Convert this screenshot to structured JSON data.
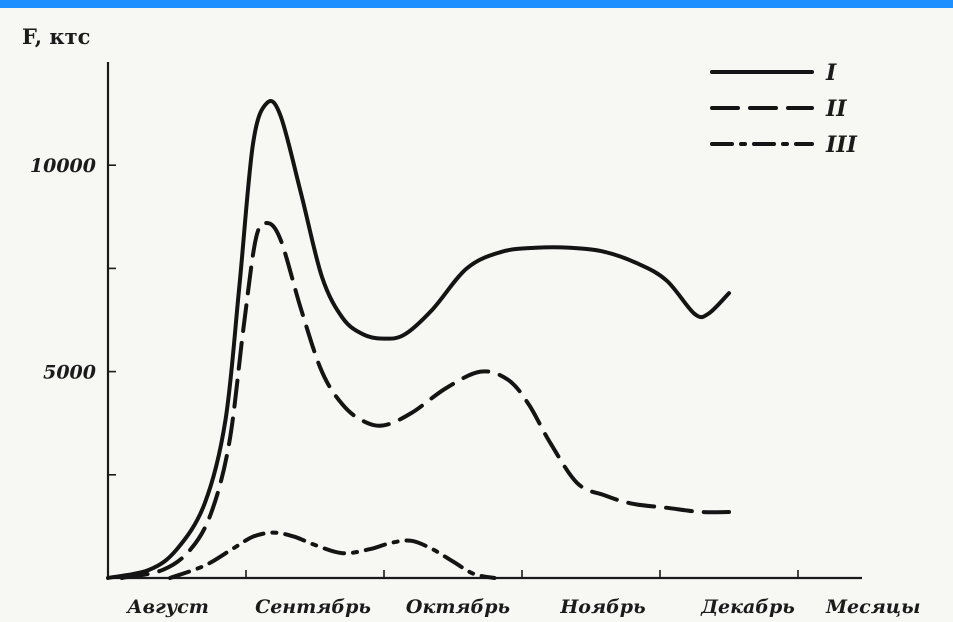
{
  "frame": {
    "top_bar_color": "#1e90ff"
  },
  "chart_data": {
    "type": "line",
    "ylabel": "F, ктс",
    "xlabel": "Месяцы",
    "categories": [
      "Август",
      "Сентябрь",
      "Октябрь",
      "Ноябрь",
      "Декабрь"
    ],
    "ylim": [
      0,
      12500
    ],
    "yticks": [
      0,
      2500,
      5000,
      7500,
      10000
    ],
    "ytick_labels": [
      "10000",
      "5000"
    ],
    "legend": {
      "position": "top-right"
    },
    "series": [
      {
        "name": "I",
        "style": "solid",
        "x": [
          0.0,
          0.3,
          0.5,
          0.7,
          0.85,
          0.95,
          1.05,
          1.15,
          1.25,
          1.4,
          1.55,
          1.7,
          1.85,
          2.0,
          2.15,
          2.35,
          2.6,
          2.85,
          3.1,
          3.35,
          3.6,
          3.85,
          4.05,
          4.25,
          4.35,
          4.5
        ],
        "y": [
          0,
          200,
          700,
          1800,
          3800,
          7000,
          10500,
          11500,
          11200,
          9300,
          7300,
          6300,
          5900,
          5800,
          5900,
          6500,
          7500,
          7900,
          8000,
          8000,
          7900,
          7600,
          7200,
          6400,
          6400,
          6900
        ]
      },
      {
        "name": "II",
        "style": "dashed",
        "x": [
          0.1,
          0.4,
          0.6,
          0.75,
          0.88,
          0.98,
          1.07,
          1.15,
          1.25,
          1.4,
          1.55,
          1.7,
          1.85,
          2.0,
          2.2,
          2.45,
          2.7,
          2.9,
          3.05,
          3.2,
          3.4,
          3.6,
          3.8,
          4.05,
          4.3,
          4.5
        ],
        "y": [
          0,
          200,
          700,
          1600,
          3300,
          6000,
          8200,
          8600,
          8200,
          6500,
          5000,
          4200,
          3800,
          3700,
          4000,
          4600,
          5000,
          4800,
          4200,
          3300,
          2300,
          2000,
          1800,
          1700,
          1600,
          1600
        ]
      },
      {
        "name": "III",
        "style": "dash-dot",
        "x": [
          0.45,
          0.7,
          0.9,
          1.05,
          1.2,
          1.35,
          1.5,
          1.7,
          1.9,
          2.05,
          2.2,
          2.35,
          2.5,
          2.65,
          2.8
        ],
        "y": [
          0,
          300,
          700,
          1000,
          1100,
          1000,
          800,
          600,
          700,
          850,
          900,
          700,
          400,
          100,
          0
        ]
      }
    ]
  }
}
